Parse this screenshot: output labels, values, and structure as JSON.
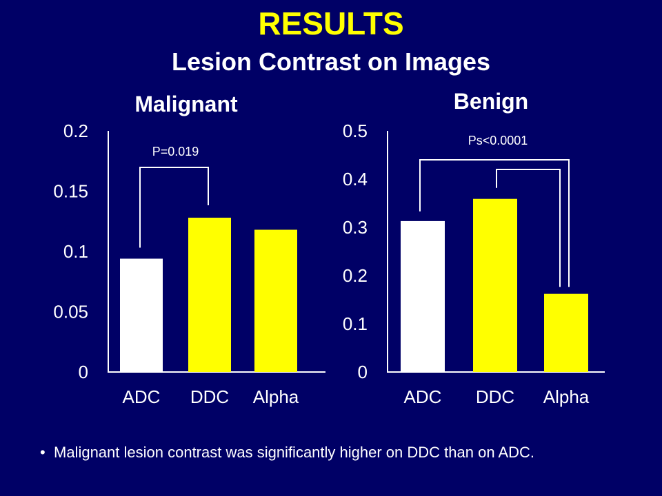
{
  "slide": {
    "title": "RESULTS",
    "subtitle": "Lesion Contrast on Images",
    "footnote_bullet": "•",
    "footnote": "Malignant lesion contrast was significantly higher on DDC than on ADC."
  },
  "colors": {
    "background": "#000066",
    "title": "#ffff00",
    "text": "#ffffff",
    "bar_adc": "#ffffff",
    "bar_other": "#ffff00"
  },
  "chart_data": [
    {
      "type": "bar",
      "title": "Malignant",
      "categories": [
        "ADC",
        "DDC",
        "Alpha"
      ],
      "values": [
        0.094,
        0.128,
        0.118
      ],
      "ylim": [
        0,
        0.2
      ],
      "yticks": [
        0,
        0.05,
        0.1,
        0.15,
        0.2
      ],
      "ytick_labels": [
        "0",
        "0.05",
        "0.1",
        "0.15",
        "0.2"
      ],
      "xlabel": "",
      "ylabel": "",
      "annotations": [
        {
          "text": "P=0.019",
          "from": "ADC",
          "to": "DDC"
        }
      ]
    },
    {
      "type": "bar",
      "title": "Benign",
      "categories": [
        "ADC",
        "DDC",
        "Alpha"
      ],
      "values": [
        0.313,
        0.359,
        0.162
      ],
      "ylim": [
        0,
        0.5
      ],
      "yticks": [
        0,
        0.1,
        0.2,
        0.3,
        0.4,
        0.5
      ],
      "ytick_labels": [
        "0",
        "0.1",
        "0.2",
        "0.3",
        "0.4",
        "0.5"
      ],
      "xlabel": "",
      "ylabel": "",
      "annotations": [
        {
          "text": "Ps<0.0001",
          "pairs": [
            [
              "ADC",
              "Alpha"
            ],
            [
              "DDC",
              "Alpha"
            ]
          ]
        }
      ]
    }
  ]
}
